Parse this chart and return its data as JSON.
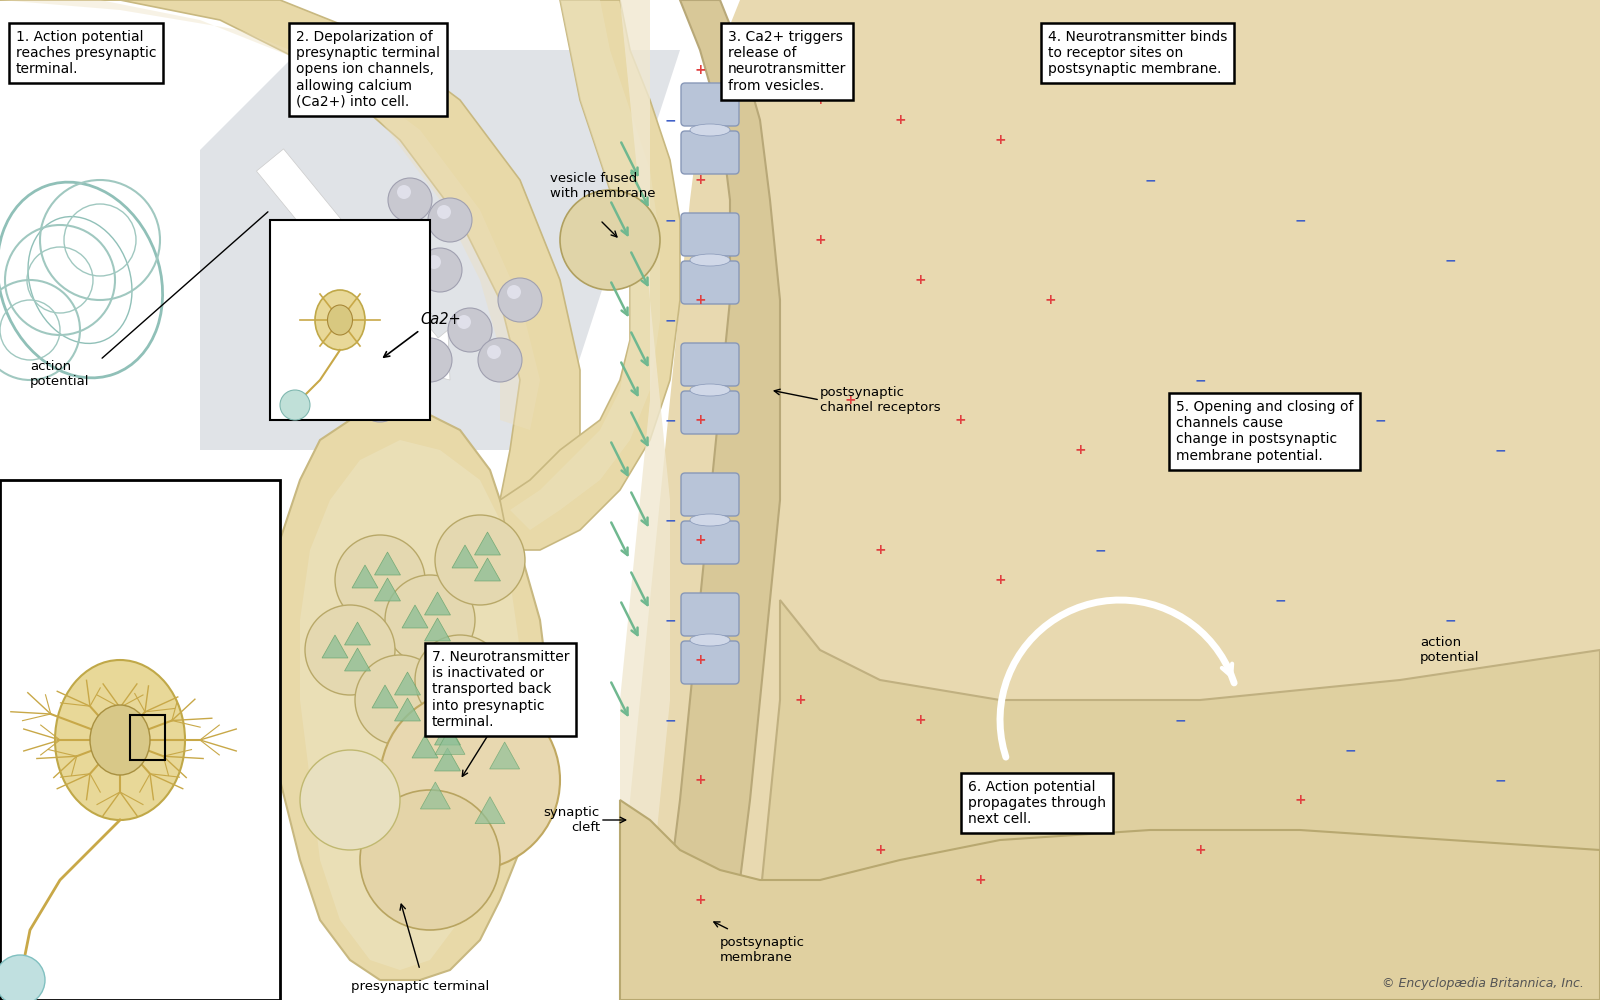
{
  "bg_color": "#ffffff",
  "pre_color": "#e8d9a8",
  "pre_edge": "#c8b880",
  "pre_dark": "#d4c090",
  "post_color": "#dfd0a0",
  "post_body_color": "#e8d9a8",
  "cleft_color": "#f0e5c8",
  "vesicle_fill": "#e0d0a0",
  "vesicle_edge": "#b8a868",
  "large_ves_fill": "#e8d8b0",
  "ca_color": "#c8c8d0",
  "ca_edge": "#a0a0b0",
  "receptor_fill": "#b8c4d8",
  "receptor_edge": "#8898b8",
  "nt_color": "#70b890",
  "plus_color": "#e04040",
  "minus_color": "#4060c8",
  "white_color": "#ffffff",
  "black_color": "#000000",
  "gray_bg": "#c8ccd4",
  "copyright": "© Encyclopædia Britannica, Inc.",
  "box1": {
    "text": "1. Action potential\nreaches presynaptic\nterminal.",
    "fs": 10
  },
  "box2": {
    "text": "2. Depolarization of\npresynaptic terminal\nopens ion channels,\nallowing calcium\n(Ca2+) into cell.",
    "fs": 10
  },
  "box3": {
    "text": "3. Ca2+ triggers\nrelease of\nneurotransmitter\nfrom vesicles.",
    "fs": 10
  },
  "box4": {
    "text": "4. Neurotransmitter binds\nto receptor sites on\npostsynaptic membrane.",
    "fs": 10
  },
  "box5": {
    "text": "5. Opening and closing of\nchannels cause\nchange in postsynaptic\nmembrane potential.",
    "fs": 10
  },
  "box6": {
    "text": "6. Action potential\npropagates through\nnext cell.",
    "fs": 10
  },
  "box7": {
    "text": "7. Neurotransmitter\nis inactivated or\ntransported back\ninto presynaptic\nterminal.",
    "fs": 10
  }
}
